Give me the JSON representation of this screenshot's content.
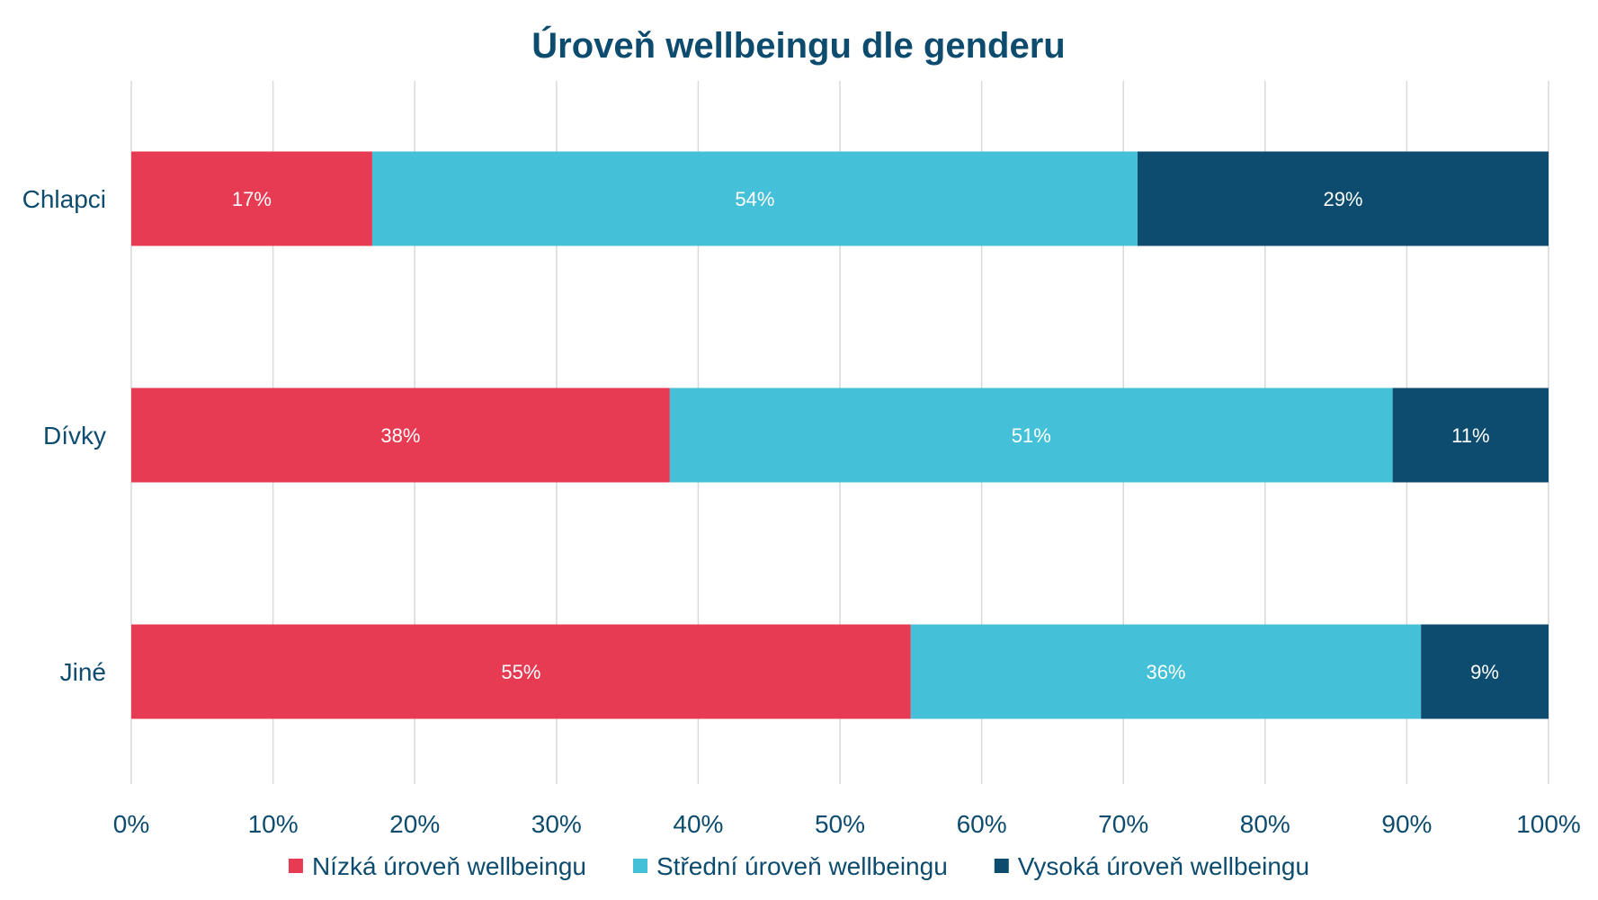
{
  "chart_data": {
    "type": "bar",
    "orientation": "horizontal",
    "stacked": "percent",
    "title": "Úroveň wellbeingu dle genderu",
    "categories": [
      "Chlapci",
      "Dívky",
      "Jiné"
    ],
    "series": [
      {
        "name": "Nízká úroveň wellbeingu",
        "color": "#e63b52",
        "values": [
          17,
          38,
          55
        ],
        "labels": [
          "17%",
          "38%",
          "55%"
        ]
      },
      {
        "name": "Střední úroveň wellbeingu",
        "color": "#44c0d8",
        "values": [
          54,
          51,
          36
        ],
        "labels": [
          "54%",
          "51%",
          "36%"
        ]
      },
      {
        "name": "Vysoká úroveň wellbeingu",
        "color": "#0d4c6e",
        "values": [
          29,
          11,
          9
        ],
        "labels": [
          "29%",
          "11%",
          "9%"
        ]
      }
    ],
    "xlim": [
      0,
      100
    ],
    "xticks": [
      0,
      10,
      20,
      30,
      40,
      50,
      60,
      70,
      80,
      90,
      100
    ],
    "xtick_labels": [
      "0%",
      "10%",
      "20%",
      "30%",
      "40%",
      "50%",
      "60%",
      "70%",
      "80%",
      "90%",
      "100%"
    ],
    "grid": "vertical",
    "legend": "bottom",
    "xlabel": "",
    "ylabel": ""
  },
  "colors": {
    "text": "#0d4c6e",
    "grid": "#d9d9d9"
  }
}
